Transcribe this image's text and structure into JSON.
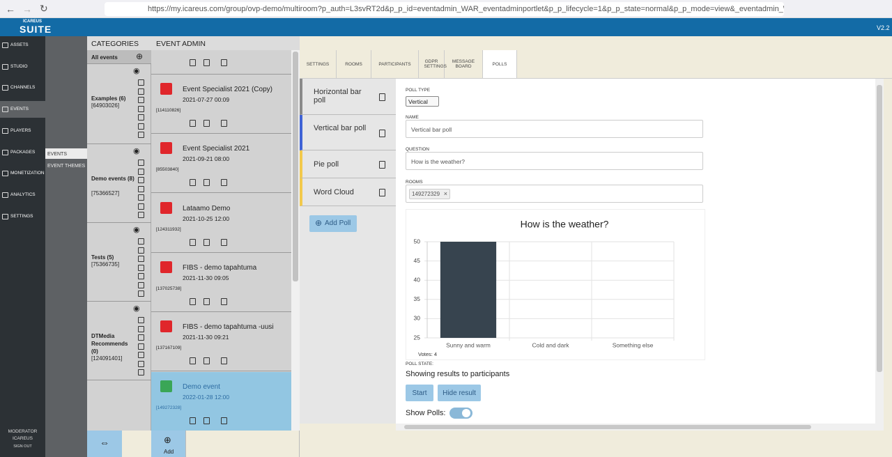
{
  "browser": {
    "url": "https://my.icareus.com/group/ovp-demo/multiroom?p_auth=L3svRT2d&p_p_id=eventadmin_WAR_eventadminportlet&p_p_lifecycle=1&p_p_state=normal&p_p_mode=view&_eventadmin_WAR_eventadminportlet_jspPa"
  },
  "header": {
    "logo_small": "ICAREUS",
    "logo": "SUITE",
    "version": "V2.2"
  },
  "nav": [
    "ASSETS",
    "STUDIO",
    "CHANNELS",
    "EVENTS",
    "PLAYERS",
    "PACKAGES",
    "MONETIZATION",
    "ANALYTICS",
    "SETTINGS"
  ],
  "user": {
    "role": "MODERATOR",
    "name": "ICAREUS",
    "action": "SIGN OUT"
  },
  "subnav": [
    "EVENTS",
    "EVENT THEMES"
  ],
  "categories": {
    "title": "CATEGORIES",
    "all": "All events",
    "items": [
      {
        "name": "Examples (6)",
        "id": "[64903026]"
      },
      {
        "name": "Demo events (8)",
        "id": "[75366527]"
      },
      {
        "name": "Tests (5)",
        "id": "[75366735]"
      },
      {
        "name": "DTMedia Recommends (0)",
        "id": "[124091401]"
      }
    ]
  },
  "events": {
    "title": "EVENT ADMIN",
    "add": "Add",
    "items": [
      {
        "name": "Event Specialist 2021 (Copy)",
        "date": "2021-07-27 00:09",
        "id": "[114110826]"
      },
      {
        "name": "Event Specialist 2021",
        "date": "2021-09-21 08:00",
        "id": "[85503840]"
      },
      {
        "name": "Lataamo Demo",
        "date": "2021-10-25 12:00",
        "id": "[124311932]"
      },
      {
        "name": "FIBS - demo tapahtuma",
        "date": "2021-11-30 09:05",
        "id": "[137025738]"
      },
      {
        "name": "FIBS - demo tapahtuma -uusi",
        "date": "2021-11-30 09:21",
        "id": "[137167109]"
      },
      {
        "name": "Demo event",
        "date": "2022-01-28 12:00",
        "id": "[149272328]"
      }
    ]
  },
  "tabs": [
    "SETTINGS",
    "ROOMS",
    "PARTICIPANTS",
    "GDPR SETTINGS",
    "MESSAGE BOARD",
    "POLLS"
  ],
  "polls": {
    "add": "Add Poll",
    "items": [
      {
        "name": "Horizontal bar poll",
        "color": "#8a8a8a"
      },
      {
        "name": "Vertical bar poll",
        "color": "#3f63d6"
      },
      {
        "name": "Pie poll",
        "color": "#f2c94c"
      },
      {
        "name": "Word Cloud",
        "color": "#f2c94c"
      }
    ]
  },
  "form": {
    "poll_type_label": "POLL TYPE",
    "poll_type": "Vertical",
    "name_label": "NAME",
    "name": "Vertical bar poll",
    "question_label": "QUESTION",
    "question": "How is the weather?",
    "rooms_label": "ROOMS",
    "room": "149272329",
    "state_label": "POLL STATE:",
    "state": "Showing results to participants",
    "start": "Start",
    "hide": "Hide result",
    "show_polls": "Show Polls:"
  },
  "chart_data": {
    "type": "bar",
    "title": "How is the weather?",
    "categories": [
      "Sunny and warm",
      "Cold and dark",
      "Something else"
    ],
    "values": [
      50,
      25,
      25
    ],
    "color": "#37444f",
    "ylim": [
      25,
      50
    ],
    "yticks": [
      25,
      30,
      35,
      40,
      45,
      50
    ],
    "grid": true,
    "note": "Votes: 4"
  }
}
